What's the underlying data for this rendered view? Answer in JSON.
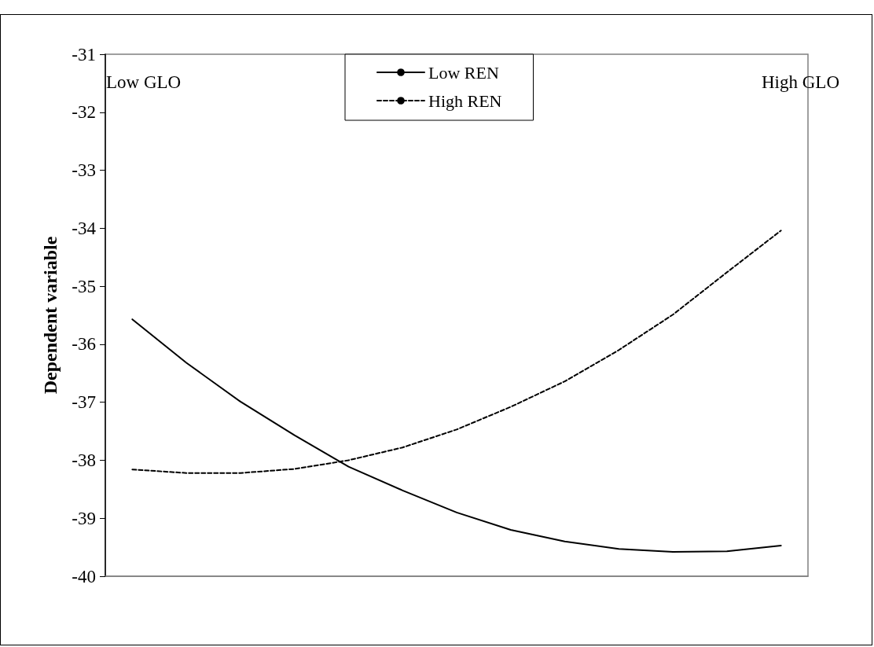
{
  "chart_data": {
    "type": "line",
    "ylabel": "Dependent variable",
    "categories": [
      null,
      null,
      null,
      null,
      null,
      null,
      null,
      null,
      null,
      null,
      null,
      null,
      null
    ],
    "series": [
      {
        "name": "Low REN",
        "color": "#000000",
        "line_style": "solid",
        "values": [
          -35.57,
          -36.32,
          -36.99,
          -37.57,
          -38.11,
          -38.52,
          -38.9,
          -39.2,
          -39.4,
          -39.53,
          -39.58,
          -39.57,
          -39.47
        ]
      },
      {
        "name": "High REN",
        "color": "#000000",
        "line_style": "dashed",
        "values": [
          -38.16,
          -38.22,
          -38.22,
          -38.15,
          -38.0,
          -37.78,
          -37.47,
          -37.08,
          -36.64,
          -36.1,
          -35.49,
          -34.76,
          -34.04
        ]
      }
    ],
    "ylim": [
      -40,
      -31
    ],
    "yticks": [
      -40,
      -39,
      -38,
      -37,
      -36,
      -35,
      -34,
      -33,
      -32,
      -31
    ],
    "grid": false,
    "legend": "top",
    "marker": "none",
    "annotations": [
      "Low GLO",
      "High GLO"
    ]
  }
}
